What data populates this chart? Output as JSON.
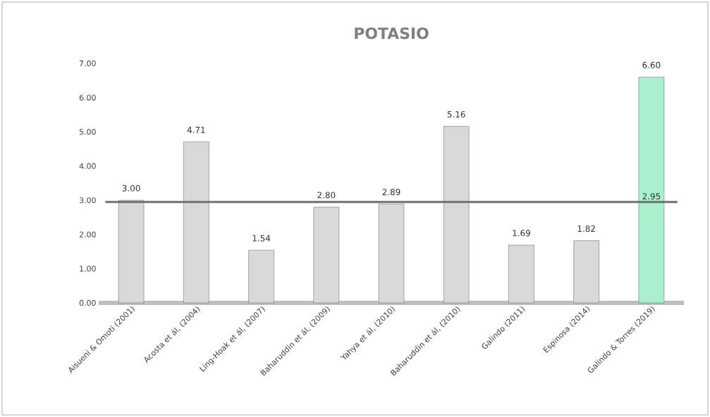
{
  "chart_data": {
    "type": "bar",
    "title": "POTASIO",
    "categories": [
      "Aisueni & Omoti (2001)",
      "Acosta et ál, (2004)",
      "Ling-Hoak et ál, (2007)",
      "Baharuddin et ál, (2009)",
      "Yahya et ál, (2010)",
      "Baharuddin et ál, (2010)",
      "Galindo (2011)",
      "Espinosa (2014)",
      "Galindo & Torres (2019)"
    ],
    "values": [
      3.0,
      4.71,
      1.54,
      2.8,
      2.89,
      5.16,
      1.69,
      1.82,
      6.6
    ],
    "colors": [
      "#d9d9d9",
      "#d9d9d9",
      "#d9d9d9",
      "#d9d9d9",
      "#d9d9d9",
      "#d9d9d9",
      "#d9d9d9",
      "#d9d9d9",
      "#a9f0cc"
    ],
    "value_labels": [
      "3.00",
      "4.71",
      "1.54",
      "2.80",
      "2.89",
      "5.16",
      "1.69",
      "1.82",
      "6.60"
    ],
    "ylim": [
      0,
      7
    ],
    "yticks": [
      {
        "value": 0,
        "label": "0.00"
      },
      {
        "value": 1,
        "label": "1.00"
      },
      {
        "value": 2,
        "label": "2.00"
      },
      {
        "value": 3,
        "label": "3.00"
      },
      {
        "value": 4,
        "label": "4.00"
      },
      {
        "value": 5,
        "label": "5.00"
      },
      {
        "value": 6,
        "label": "6.00"
      },
      {
        "value": 7,
        "label": "7.00"
      }
    ],
    "ref_lines": [
      {
        "axis": "y",
        "value": 2.95,
        "label": "2.95",
        "color": "#707070"
      }
    ],
    "grid": false
  }
}
